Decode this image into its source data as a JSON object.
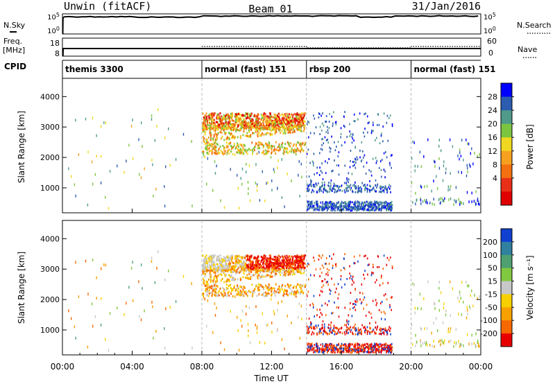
{
  "header": {
    "station": "Unwin (fitACF)",
    "beam": "Beam 01",
    "date": "31/Jan/2016"
  },
  "chart_data": {
    "type": "heatmap",
    "x_axis": {
      "label": "Time UT",
      "range_hours": [
        0,
        24
      ],
      "tick_labels": [
        "00:00",
        "04:00",
        "08:00",
        "12:00",
        "16:00",
        "20:00",
        "00:00"
      ],
      "tick_hours": [
        0,
        4,
        8,
        12,
        16,
        20,
        24
      ]
    },
    "nsky_panel": {
      "left_label": "N.Sky",
      "right_label": "N.Search",
      "left_ticks": [
        "10^5",
        "10^0"
      ],
      "right_ticks": [
        "10^5",
        "10^0"
      ]
    },
    "freq_panel": {
      "left_label_top": "Freq.",
      "left_label_bottom": "[MHz]",
      "left_ticks": [
        "18",
        "8"
      ],
      "right_label": "Nave",
      "right_ticks": [
        "60",
        "0"
      ]
    },
    "cpid": {
      "label": "CPID",
      "segments": [
        {
          "label": "themis 3300",
          "start_hour": 0,
          "end_hour": 8
        },
        {
          "label": "normal (fast) 151",
          "start_hour": 8,
          "end_hour": 14
        },
        {
          "label": "rbsp 200",
          "start_hour": 14,
          "end_hour": 20
        },
        {
          "label": "normal (fast) 151",
          "start_hour": 20,
          "end_hour": 24
        }
      ]
    },
    "power_panel": {
      "ylabel": "Slant Range [km]",
      "ylim": [
        180,
        4600
      ],
      "y_ticks": [
        1000,
        2000,
        3000,
        4000
      ],
      "colorbar_label": "Power [dB]",
      "colorbar_ticks": [
        "4",
        "8",
        "12",
        "16",
        "20",
        "24",
        "28"
      ],
      "colorbar_colors": [
        "#0000ff",
        "#2c5cb0",
        "#4f9a8a",
        "#7cc540",
        "#f0d820",
        "#f7a020",
        "#f27010",
        "#e83018",
        "#e00000"
      ]
    },
    "velocity_panel": {
      "ylabel": "Slant Range [km]",
      "ylim": [
        180,
        4600
      ],
      "y_ticks": [
        1000,
        2000,
        3000,
        4000
      ],
      "colorbar_label": "Velocity [m s⁻¹]",
      "colorbar_ticks": [
        "200",
        "100",
        "50",
        "15",
        "-15",
        "-50",
        "-100",
        "-200"
      ],
      "colorbar_colors": [
        "#1040d0",
        "#3080a0",
        "#4fa070",
        "#80c840",
        "#c8c8c8",
        "#f8d000",
        "#f8a000",
        "#f86800",
        "#e80000"
      ]
    }
  }
}
